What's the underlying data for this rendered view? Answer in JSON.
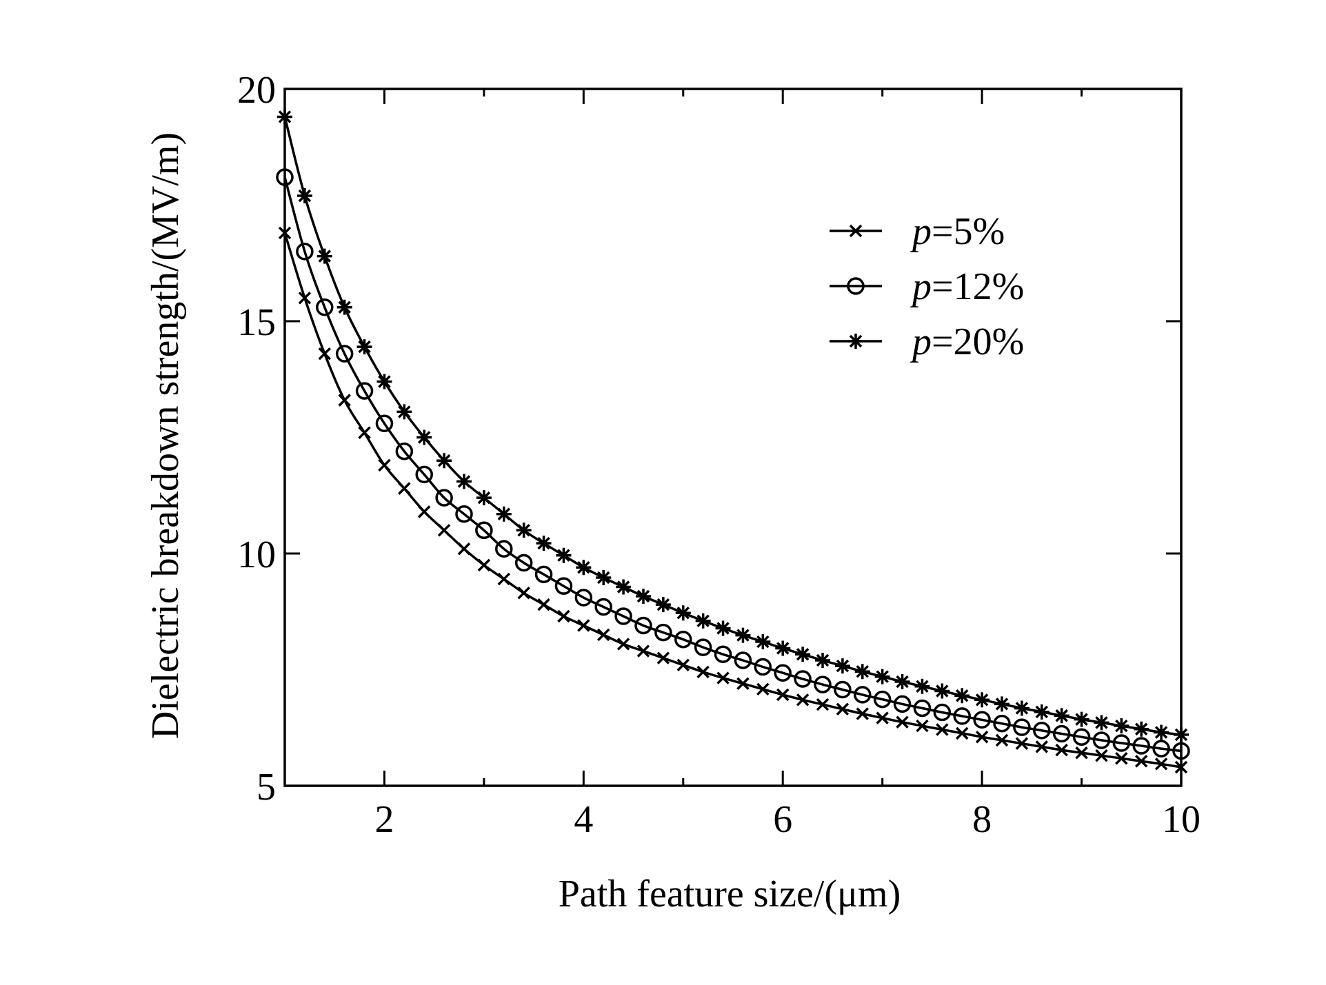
{
  "chart_data": {
    "type": "line",
    "title": "",
    "xlabel": "Path feature size/(μm)",
    "ylabel": "Dielectric breakdown strength/(MV/m)",
    "xlim": [
      1,
      10
    ],
    "ylim": [
      5,
      20
    ],
    "xticks": [
      "2",
      "4",
      "6",
      "8",
      "10"
    ],
    "yticks": [
      "5",
      "10",
      "15",
      "20"
    ],
    "grid": false,
    "legend_position": "top-right",
    "series": [
      {
        "name": "p=5%",
        "prefix": "p",
        "suffix": "=5%",
        "marker": "x",
        "x": [
          1.0,
          1.2,
          1.4,
          1.6,
          1.8,
          2.0,
          2.2,
          2.4,
          2.6,
          2.8,
          3.0,
          3.2,
          3.4,
          3.6,
          3.8,
          4.0,
          4.2,
          4.4,
          4.6,
          4.8,
          5.0,
          5.2,
          5.4,
          5.6,
          5.8,
          6.0,
          6.2,
          6.4,
          6.6,
          6.8,
          7.0,
          7.2,
          7.4,
          7.6,
          7.8,
          8.0,
          8.2,
          8.4,
          8.6,
          8.8,
          9.0,
          9.2,
          9.4,
          9.6,
          9.8,
          10.0
        ],
        "y": [
          16.9,
          15.5,
          14.3,
          13.3,
          12.6,
          11.9,
          11.4,
          10.9,
          10.5,
          10.1,
          9.75,
          9.45,
          9.15,
          8.9,
          8.65,
          8.45,
          8.25,
          8.05,
          7.9,
          7.75,
          7.6,
          7.45,
          7.32,
          7.2,
          7.08,
          6.96,
          6.85,
          6.75,
          6.65,
          6.55,
          6.46,
          6.37,
          6.29,
          6.21,
          6.13,
          6.05,
          5.98,
          5.91,
          5.84,
          5.77,
          5.71,
          5.65,
          5.59,
          5.53,
          5.47,
          5.4
        ]
      },
      {
        "name": "p=12%",
        "prefix": "p",
        "suffix": "=12%",
        "marker": "o",
        "x": [
          1.0,
          1.2,
          1.4,
          1.6,
          1.8,
          2.0,
          2.2,
          2.4,
          2.6,
          2.8,
          3.0,
          3.2,
          3.4,
          3.6,
          3.8,
          4.0,
          4.2,
          4.4,
          4.6,
          4.8,
          5.0,
          5.2,
          5.4,
          5.6,
          5.8,
          6.0,
          6.2,
          6.4,
          6.6,
          6.8,
          7.0,
          7.2,
          7.4,
          7.6,
          7.8,
          8.0,
          8.2,
          8.4,
          8.6,
          8.8,
          9.0,
          9.2,
          9.4,
          9.6,
          9.8,
          10.0
        ],
        "y": [
          18.1,
          16.5,
          15.3,
          14.3,
          13.5,
          12.8,
          12.2,
          11.7,
          11.2,
          10.85,
          10.5,
          10.1,
          9.8,
          9.55,
          9.3,
          9.05,
          8.85,
          8.65,
          8.45,
          8.3,
          8.15,
          7.98,
          7.83,
          7.7,
          7.56,
          7.43,
          7.3,
          7.18,
          7.07,
          6.96,
          6.86,
          6.76,
          6.67,
          6.58,
          6.5,
          6.42,
          6.34,
          6.26,
          6.19,
          6.12,
          6.05,
          5.98,
          5.92,
          5.86,
          5.8,
          5.75
        ]
      },
      {
        "name": "p=20%",
        "prefix": "p",
        "suffix": "=20%",
        "marker": "star",
        "x": [
          1.0,
          1.2,
          1.4,
          1.6,
          1.8,
          2.0,
          2.2,
          2.4,
          2.6,
          2.8,
          3.0,
          3.2,
          3.4,
          3.6,
          3.8,
          4.0,
          4.2,
          4.4,
          4.6,
          4.8,
          5.0,
          5.2,
          5.4,
          5.6,
          5.8,
          6.0,
          6.2,
          6.4,
          6.6,
          6.8,
          7.0,
          7.2,
          7.4,
          7.6,
          7.8,
          8.0,
          8.2,
          8.4,
          8.6,
          8.8,
          9.0,
          9.2,
          9.4,
          9.6,
          9.8,
          10.0
        ],
        "y": [
          19.4,
          17.7,
          16.4,
          15.3,
          14.45,
          13.7,
          13.05,
          12.5,
          12.0,
          11.55,
          11.2,
          10.85,
          10.5,
          10.22,
          9.96,
          9.7,
          9.48,
          9.28,
          9.08,
          8.9,
          8.72,
          8.55,
          8.39,
          8.24,
          8.1,
          7.96,
          7.83,
          7.7,
          7.58,
          7.46,
          7.35,
          7.24,
          7.14,
          7.04,
          6.94,
          6.85,
          6.76,
          6.67,
          6.59,
          6.51,
          6.43,
          6.36,
          6.29,
          6.22,
          6.15,
          6.1
        ]
      }
    ]
  }
}
